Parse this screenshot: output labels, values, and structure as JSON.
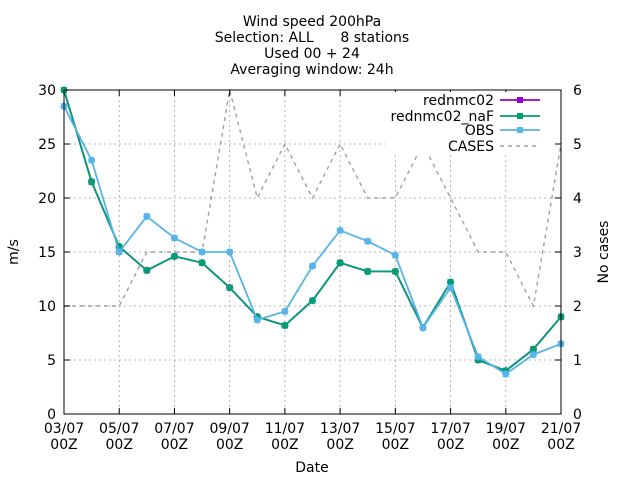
{
  "chart_data": {
    "type": "line",
    "title_lines": [
      "Wind speed 200hPa",
      "Selection: ALL      8 stations",
      "Used 00 + 24",
      "Averaging window: 24h"
    ],
    "xlabel": "Date",
    "ylabel": "m/s",
    "y2label": "No cases",
    "x": [
      "03/07",
      "04/07",
      "05/07",
      "06/07",
      "07/07",
      "08/07",
      "09/07",
      "10/07",
      "11/07",
      "12/07",
      "13/07",
      "14/07",
      "15/07",
      "16/07",
      "17/07",
      "18/07",
      "19/07",
      "20/07",
      "21/07"
    ],
    "xticks": [
      {
        "index": 0,
        "line1": "03/07",
        "line2": "00Z"
      },
      {
        "index": 2,
        "line1": "05/07",
        "line2": "00Z"
      },
      {
        "index": 4,
        "line1": "07/07",
        "line2": "00Z"
      },
      {
        "index": 6,
        "line1": "09/07",
        "line2": "00Z"
      },
      {
        "index": 8,
        "line1": "11/07",
        "line2": "00Z"
      },
      {
        "index": 10,
        "line1": "13/07",
        "line2": "00Z"
      },
      {
        "index": 12,
        "line1": "15/07",
        "line2": "00Z"
      },
      {
        "index": 14,
        "line1": "17/07",
        "line2": "00Z"
      },
      {
        "index": 16,
        "line1": "19/07",
        "line2": "00Z"
      },
      {
        "index": 18,
        "line1": "21/07",
        "line2": "00Z"
      }
    ],
    "ylim": [
      0,
      30
    ],
    "yticks": [
      0,
      5,
      10,
      15,
      20,
      25,
      30
    ],
    "y2lim": [
      0,
      6
    ],
    "y2ticks": [
      0,
      1,
      2,
      3,
      4,
      5,
      6
    ],
    "grid": true,
    "legend_position": "top-right",
    "series": [
      {
        "name": "rednmc02",
        "axis": "y",
        "color": "#9400d3",
        "style": "line-points",
        "values": [
          30.0,
          21.5,
          15.5,
          13.3,
          14.6,
          14.0,
          11.7,
          9.0,
          8.2,
          10.5,
          14.0,
          13.2,
          13.2,
          8.0,
          12.2,
          5.0,
          4.0,
          6.0,
          9.0
        ]
      },
      {
        "name": "rednmc02_naF",
        "axis": "y",
        "color": "#009e73",
        "style": "line-points",
        "values": [
          30.0,
          21.5,
          15.5,
          13.3,
          14.6,
          14.0,
          11.7,
          9.0,
          8.2,
          10.5,
          14.0,
          13.2,
          13.2,
          8.0,
          12.2,
          5.0,
          4.0,
          6.0,
          9.0
        ]
      },
      {
        "name": "OBS",
        "axis": "y",
        "color": "#56b4e9",
        "style": "line-points",
        "values": [
          28.5,
          23.5,
          15.0,
          18.3,
          16.3,
          15.0,
          15.0,
          8.7,
          9.5,
          13.7,
          17.0,
          16.0,
          14.7,
          8.0,
          11.7,
          5.3,
          3.7,
          5.5,
          6.5
        ]
      },
      {
        "name": "CASES",
        "axis": "y2",
        "color": "#a0a0a0",
        "style": "dashed",
        "values": [
          2,
          2,
          2,
          3,
          3,
          3,
          6,
          4,
          5,
          4,
          5,
          4,
          4,
          5,
          4,
          3,
          3,
          2,
          5
        ]
      }
    ]
  }
}
